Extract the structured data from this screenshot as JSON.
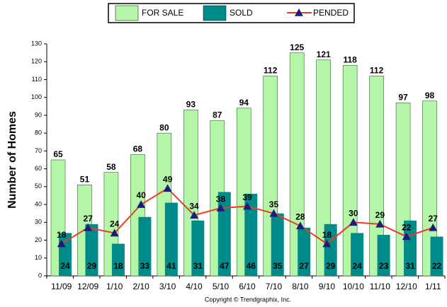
{
  "chart_data": {
    "type": "bar",
    "y_label": "Number of Homes",
    "footer": "Copyright © Trendgraphix, Inc.",
    "categories": [
      "11/09",
      "12/09",
      "1/10",
      "2/10",
      "3/10",
      "4/10",
      "5/10",
      "6/10",
      "7/10",
      "8/10",
      "9/10",
      "10/10",
      "11/10",
      "12/10",
      "1/11"
    ],
    "series": [
      {
        "name": "FOR SALE",
        "type": "bar",
        "color": "#b5f5a8",
        "values": [
          65,
          51,
          58,
          68,
          80,
          93,
          87,
          94,
          112,
          125,
          121,
          118,
          112,
          97,
          98
        ]
      },
      {
        "name": "SOLD",
        "type": "bar",
        "color": "#008b8b",
        "values": [
          24,
          29,
          18,
          33,
          41,
          31,
          47,
          46,
          35,
          27,
          29,
          24,
          23,
          31,
          22
        ]
      },
      {
        "name": "PENDED",
        "type": "line",
        "color": "#e8401c",
        "marker_color": "#1c1c7a",
        "values": [
          18,
          27,
          24,
          40,
          49,
          34,
          38,
          39,
          35,
          28,
          18,
          30,
          29,
          22,
          27
        ]
      }
    ],
    "ylim": [
      0,
      130
    ],
    "yticks": [
      0,
      10,
      20,
      30,
      40,
      50,
      60,
      70,
      80,
      90,
      100,
      110,
      120,
      130
    ],
    "legend": "top"
  }
}
